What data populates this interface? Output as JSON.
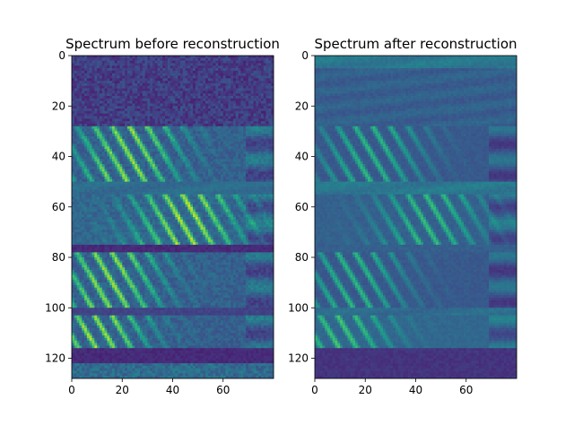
{
  "chart_data": [
    {
      "type": "heatmap",
      "title": "Spectrum before reconstruction",
      "xlabel": "",
      "ylabel": "",
      "xlim": [
        0,
        80
      ],
      "ylim": [
        128,
        0
      ],
      "x_ticks": [
        0,
        20,
        40,
        60
      ],
      "y_ticks": [
        0,
        20,
        40,
        60,
        80,
        100,
        120
      ],
      "colormap": "viridis",
      "rows": 128,
      "cols": 80,
      "bands": [
        {
          "y_start": 0,
          "y_end": 28,
          "mean": 0.18,
          "texture": "noise"
        },
        {
          "y_start": 28,
          "y_end": 50,
          "mean": 0.55,
          "texture": "harmonic-streaks",
          "peak_x": 22
        },
        {
          "y_start": 50,
          "y_end": 55,
          "mean": 0.35,
          "texture": "smooth"
        },
        {
          "y_start": 55,
          "y_end": 75,
          "mean": 0.6,
          "texture": "harmonic-streaks",
          "peak_x": 45
        },
        {
          "y_start": 75,
          "y_end": 78,
          "mean": 0.12,
          "texture": "dark-line"
        },
        {
          "y_start": 78,
          "y_end": 100,
          "mean": 0.55,
          "texture": "harmonic-streaks",
          "peak_x": 15
        },
        {
          "y_start": 100,
          "y_end": 103,
          "mean": 0.2,
          "texture": "dark-line"
        },
        {
          "y_start": 103,
          "y_end": 116,
          "mean": 0.55,
          "texture": "harmonic-streaks",
          "peak_x": 10
        },
        {
          "y_start": 116,
          "y_end": 122,
          "mean": 0.12,
          "texture": "dark-line"
        },
        {
          "y_start": 122,
          "y_end": 128,
          "mean": 0.35,
          "texture": "noise"
        }
      ]
    },
    {
      "type": "heatmap",
      "title": "Spectrum after reconstruction",
      "xlabel": "",
      "ylabel": "",
      "xlim": [
        0,
        80
      ],
      "ylim": [
        128,
        0
      ],
      "x_ticks": [
        0,
        20,
        40,
        60
      ],
      "y_ticks": [
        0,
        20,
        40,
        60,
        80,
        100,
        120
      ],
      "colormap": "viridis",
      "rows": 128,
      "cols": 80,
      "bands": [
        {
          "y_start": 0,
          "y_end": 5,
          "mean": 0.4,
          "texture": "smooth"
        },
        {
          "y_start": 5,
          "y_end": 28,
          "mean": 0.3,
          "texture": "smooth"
        },
        {
          "y_start": 28,
          "y_end": 50,
          "mean": 0.5,
          "texture": "harmonic-streaks",
          "peak_x": 22
        },
        {
          "y_start": 50,
          "y_end": 55,
          "mean": 0.4,
          "texture": "smooth"
        },
        {
          "y_start": 55,
          "y_end": 75,
          "mean": 0.55,
          "texture": "harmonic-streaks",
          "peak_x": 45
        },
        {
          "y_start": 75,
          "y_end": 78,
          "mean": 0.3,
          "texture": "dark-line"
        },
        {
          "y_start": 78,
          "y_end": 100,
          "mean": 0.5,
          "texture": "harmonic-streaks",
          "peak_x": 15
        },
        {
          "y_start": 100,
          "y_end": 103,
          "mean": 0.35,
          "texture": "smooth"
        },
        {
          "y_start": 103,
          "y_end": 116,
          "mean": 0.6,
          "texture": "harmonic-streaks",
          "peak_x": 10
        },
        {
          "y_start": 116,
          "y_end": 128,
          "mean": 0.15,
          "texture": "dark-line"
        }
      ]
    }
  ]
}
